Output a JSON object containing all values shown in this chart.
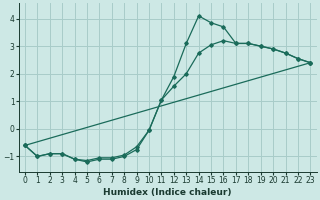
{
  "xlabel": "Humidex (Indice chaleur)",
  "background_color": "#cde8e5",
  "grid_color": "#a8ccc9",
  "line_color": "#1a6b5a",
  "xlim": [
    -0.5,
    23.5
  ],
  "ylim": [
    -1.55,
    4.55
  ],
  "xticks": [
    0,
    1,
    2,
    3,
    4,
    5,
    6,
    7,
    8,
    9,
    10,
    11,
    12,
    13,
    14,
    15,
    16,
    17,
    18,
    19,
    20,
    21,
    22,
    23
  ],
  "yticks": [
    -1,
    0,
    1,
    2,
    3,
    4
  ],
  "line1_x": [
    0,
    1,
    2,
    3,
    4,
    5,
    6,
    7,
    8,
    9,
    10,
    11,
    12,
    13,
    14,
    15,
    16,
    17,
    18,
    19,
    20,
    21,
    22,
    23
  ],
  "line1_y": [
    -0.6,
    -1.0,
    -0.9,
    -0.9,
    -1.1,
    -1.2,
    -1.1,
    -1.1,
    -1.0,
    -0.75,
    -0.05,
    1.05,
    1.9,
    3.1,
    4.1,
    3.85,
    3.7,
    3.1,
    3.1,
    3.0,
    2.9,
    2.75,
    2.55,
    2.4
  ],
  "line2_x": [
    0,
    1,
    2,
    3,
    4,
    5,
    6,
    7,
    8,
    9,
    10,
    11,
    12,
    13,
    14,
    15,
    16,
    17,
    18,
    19,
    20,
    21,
    22,
    23
  ],
  "line2_y": [
    -0.6,
    -1.0,
    -0.9,
    -0.9,
    -1.1,
    -1.15,
    -1.05,
    -1.05,
    -0.95,
    -0.65,
    -0.05,
    1.05,
    1.55,
    2.0,
    2.75,
    3.05,
    3.2,
    3.1,
    3.1,
    3.0,
    2.9,
    2.75,
    2.55,
    2.4
  ],
  "line3_x": [
    0,
    23
  ],
  "line3_y": [
    -0.6,
    2.4
  ]
}
